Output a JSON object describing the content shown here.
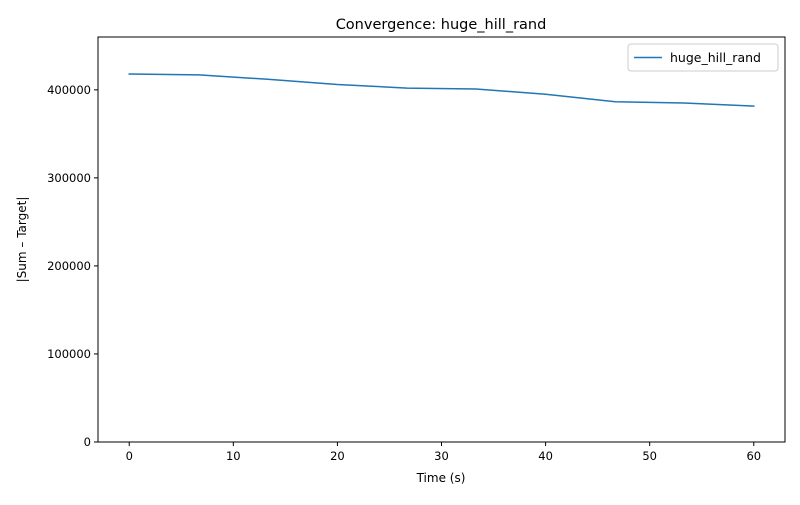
{
  "chart_data": {
    "type": "line",
    "title": "Convergence: huge_hill_rand",
    "xlabel": "Time (s)",
    "ylabel": "|Sum – Target|",
    "xlim": [
      -3,
      63
    ],
    "ylim": [
      0,
      460000
    ],
    "x_ticks": [
      0,
      10,
      20,
      30,
      40,
      50,
      60
    ],
    "y_ticks": [
      0,
      100000,
      200000,
      300000,
      400000
    ],
    "grid": false,
    "legend_position": "top-right",
    "series": [
      {
        "name": "huge_hill_rand",
        "color": "#1f77b4",
        "x": [
          0,
          6.7,
          13.3,
          20,
          26.7,
          33.3,
          40,
          46.7,
          53.3,
          60
        ],
        "y": [
          418000,
          417000,
          412000,
          406000,
          402000,
          401000,
          395000,
          386500,
          385000,
          381500
        ]
      }
    ]
  }
}
